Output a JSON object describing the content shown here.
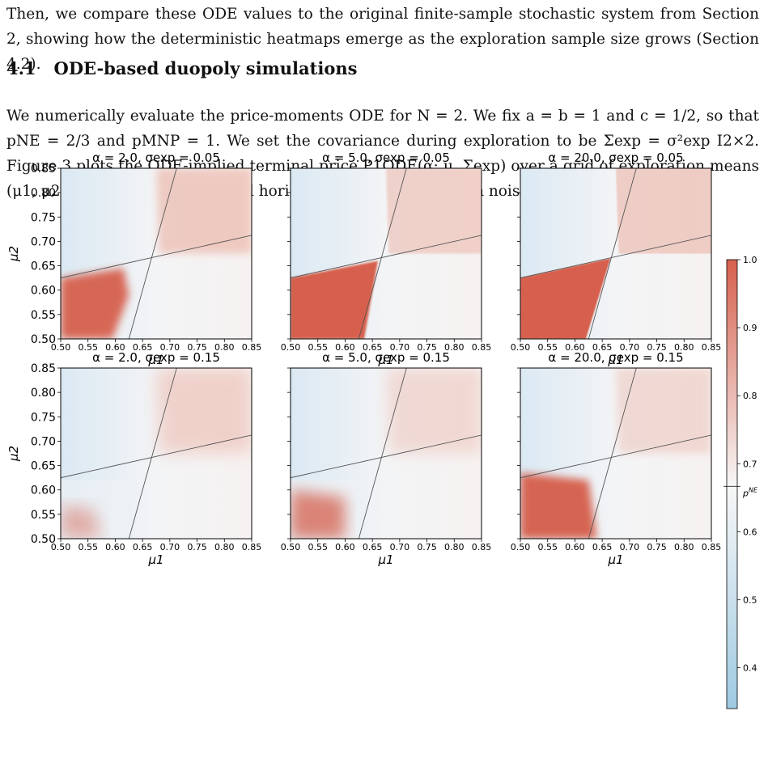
{
  "intro_text": "Then, we compare these ODE values to the original finite-sample stochastic system from Section 2, showing how the deterministic heatmaps emerge as the exploration sample size grows (Section 4.2).",
  "section": {
    "number": "4.1",
    "title": "ODE-based duopoly simulations"
  },
  "body_text": "We numerically evaluate the price-moments ODE for N = 2. We fix a = b = 1 and c = 1/2, so that pNE = 2/3 and pMNP = 1. We set the covariance during exploration to be Σexp = σ²exp I2×2. Figure 3 plots the ODE-implied terminal price P1ODE(α; μ, Σexp) over a grid of exploration means (μ1, μ2), varying both the scaled horizon α and the exploration noise σexp.",
  "chart_data": {
    "type": "heatmap",
    "panels": [
      {
        "title": "α = 2.0, σexp = 0.05",
        "alpha": "2.0",
        "sigma": "0.05"
      },
      {
        "title": "α = 5.0, σexp = 0.05",
        "alpha": "5.0",
        "sigma": "0.05"
      },
      {
        "title": "α = 20.0, σexp = 0.05",
        "alpha": "20.0",
        "sigma": "0.05"
      },
      {
        "title": "α = 2.0, σexp = 0.15",
        "alpha": "2.0",
        "sigma": "0.15"
      },
      {
        "title": "α = 5.0, σexp = 0.15",
        "alpha": "5.0",
        "sigma": "0.15"
      },
      {
        "title": "α = 20.0, σexp = 0.15",
        "alpha": "20.0",
        "sigma": "0.15"
      }
    ],
    "xlabel": "μ1",
    "ylabel": "μ2",
    "xlim": [
      0.5,
      0.85
    ],
    "ylim": [
      0.5,
      0.85
    ],
    "x_ticks": [
      "0.50",
      "0.55",
      "0.60",
      "0.65",
      "0.70",
      "0.75",
      "0.80",
      "0.85"
    ],
    "y_ticks": [
      "0.50",
      "0.55",
      "0.60",
      "0.65",
      "0.70",
      "0.75",
      "0.80",
      "0.85"
    ],
    "colorbar": {
      "range": [
        0.34,
        1.0
      ],
      "ticks": [
        "0.4",
        "0.5",
        "0.6",
        "0.7",
        "0.8",
        "0.9",
        "1.0"
      ],
      "marker_label": "p^NE",
      "marker_value": 0.6667,
      "low_color": "#9ecae1",
      "mid_color": "#f7f7f7",
      "high_color": "#d6604d"
    },
    "reference_lines": "best-response lines crossing at (0.667, 0.667)"
  }
}
